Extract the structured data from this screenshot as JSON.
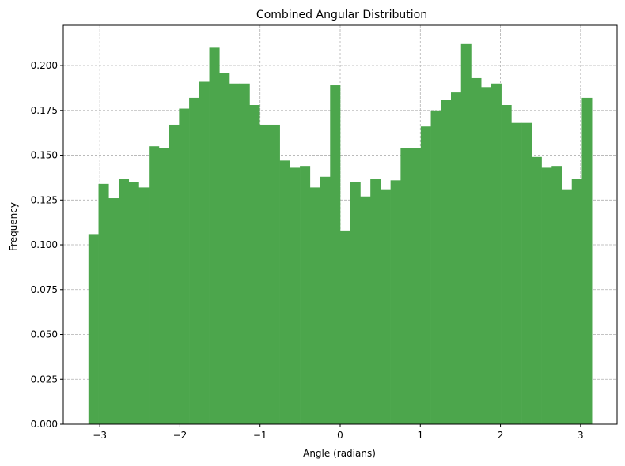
{
  "chart_data": {
    "type": "bar",
    "title": "Combined Angular Distribution",
    "xlabel": "Angle (radians)",
    "ylabel": "Frequency",
    "xlim": [
      -3.4557,
      3.4557
    ],
    "ylim": [
      0,
      0.2225
    ],
    "x_ticks": [
      -3,
      -2,
      -1,
      0,
      1,
      2,
      3
    ],
    "x_tick_labels": [
      "−3",
      "−2",
      "−1",
      "0",
      "1",
      "2",
      "3"
    ],
    "y_ticks": [
      0,
      0.025,
      0.05,
      0.075,
      0.1,
      0.125,
      0.15,
      0.175,
      0.2
    ],
    "y_tick_labels": [
      "0.000",
      "0.025",
      "0.050",
      "0.075",
      "0.100",
      "0.125",
      "0.150",
      "0.175",
      "0.200"
    ],
    "grid": true,
    "bar_color": "#4ca64c",
    "bin_range": [
      -3.14159,
      3.14159
    ],
    "bin_count": 50,
    "values": [
      0.106,
      0.134,
      0.126,
      0.137,
      0.135,
      0.132,
      0.155,
      0.154,
      0.167,
      0.176,
      0.182,
      0.191,
      0.21,
      0.196,
      0.19,
      0.19,
      0.178,
      0.167,
      0.167,
      0.147,
      0.143,
      0.144,
      0.132,
      0.138,
      0.189,
      0.108,
      0.135,
      0.127,
      0.137,
      0.131,
      0.136,
      0.154,
      0.154,
      0.166,
      0.175,
      0.181,
      0.185,
      0.212,
      0.193,
      0.188,
      0.19,
      0.178,
      0.168,
      0.168,
      0.149,
      0.143,
      0.144,
      0.131,
      0.137,
      0.182
    ]
  }
}
